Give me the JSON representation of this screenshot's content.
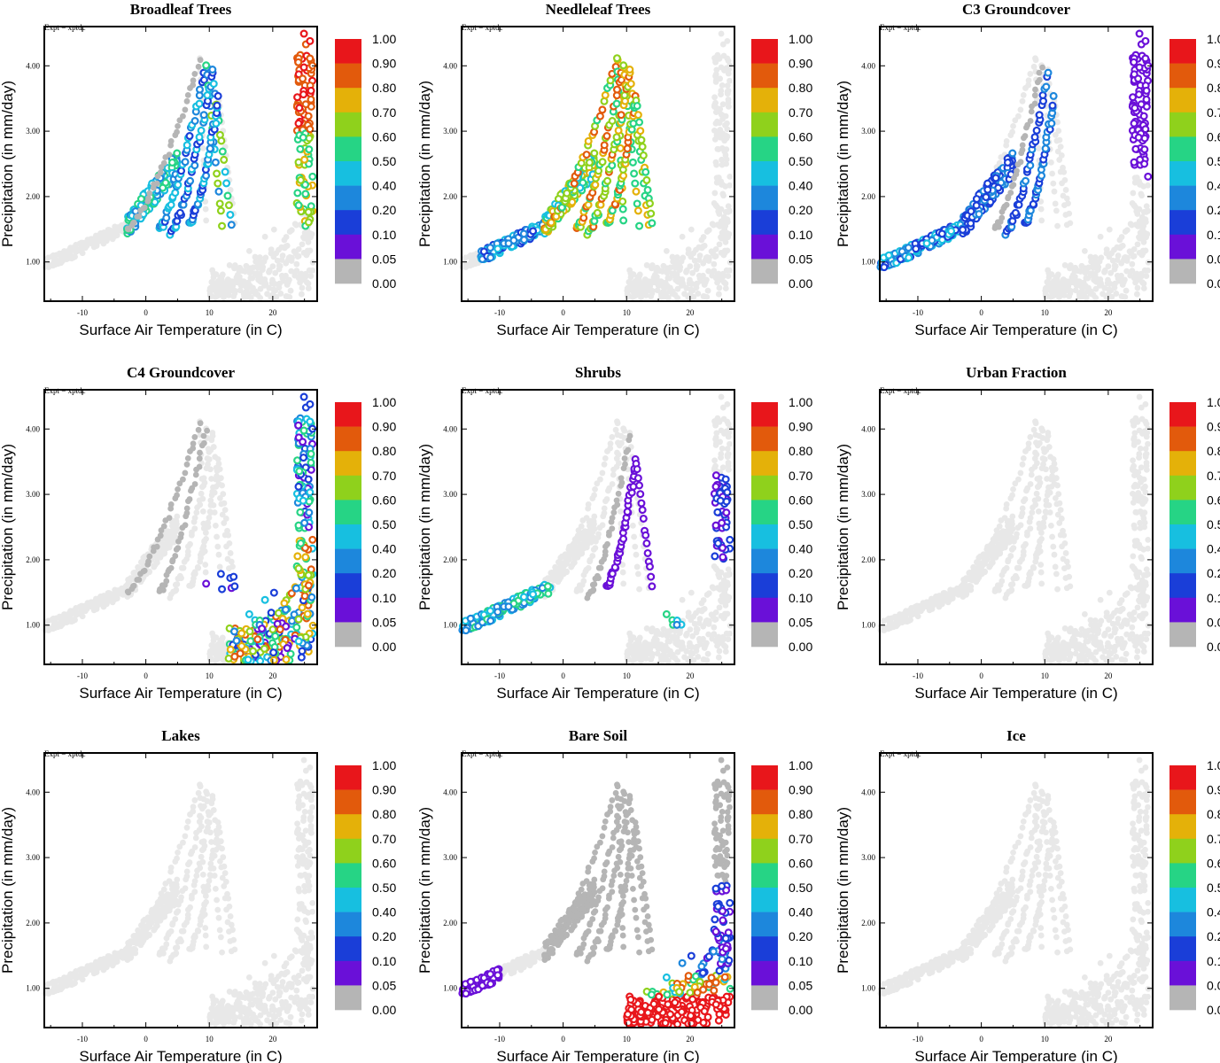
{
  "figure": {
    "expt_label": "Expt = xptdc",
    "xlabel": "Surface Air Temperature (in C)",
    "ylabel": "Precipitation (in mm/day)",
    "xlim": [
      -16,
      27
    ],
    "ylim": [
      0.4,
      4.6
    ],
    "x_ticks": [
      -10,
      0,
      10,
      20
    ],
    "y_ticks": [
      "1.00",
      "2.00",
      "3.00",
      "4.00"
    ],
    "colorbar_labels": [
      "1.00",
      "0.90",
      "0.80",
      "0.70",
      "0.60",
      "0.50",
      "0.40",
      "0.20",
      "0.10",
      "0.05",
      "0.00"
    ],
    "colorbar_colors": [
      "#e8161b",
      "#e25a0c",
      "#e4b109",
      "#8fd11c",
      "#26d485",
      "#17bfe0",
      "#1d87dc",
      "#1a3ed8",
      "#6a10d8",
      "#b5b5b5"
    ],
    "zero_color": "#e8e8e8",
    "panels": [
      {
        "title": "Broadleaf Trees",
        "pattern": "broadleaf"
      },
      {
        "title": "Needleleaf Trees",
        "pattern": "needleleaf"
      },
      {
        "title": "C3 Groundcover",
        "pattern": "c3"
      },
      {
        "title": "C4 Groundcover",
        "pattern": "c4"
      },
      {
        "title": "Shrubs",
        "pattern": "shrubs"
      },
      {
        "title": "Urban Fraction",
        "pattern": "none"
      },
      {
        "title": "Lakes",
        "pattern": "none"
      },
      {
        "title": "Bare Soil",
        "pattern": "baresoil"
      },
      {
        "title": "Ice",
        "pattern": "none"
      }
    ]
  },
  "chart_data": {
    "type": "scatter",
    "x_variable": "Surface Air Temperature (in C)",
    "y_variable": "Precipitation (in mm/day)",
    "color_variable_levels": [
      0.0,
      0.05,
      0.1,
      0.2,
      0.4,
      0.5,
      0.6,
      0.7,
      0.8,
      0.9,
      1.0
    ],
    "xlim": [
      -16,
      27
    ],
    "ylim": [
      0.4,
      4.6
    ],
    "grid": false,
    "series": [
      {
        "name": "Broadleaf Trees"
      },
      {
        "name": "Needleleaf Trees"
      },
      {
        "name": "C3 Groundcover"
      },
      {
        "name": "C4 Groundcover"
      },
      {
        "name": "Shrubs"
      },
      {
        "name": "Urban Fraction"
      },
      {
        "name": "Lakes"
      },
      {
        "name": "Bare Soil"
      },
      {
        "name": "Ice"
      }
    ]
  }
}
